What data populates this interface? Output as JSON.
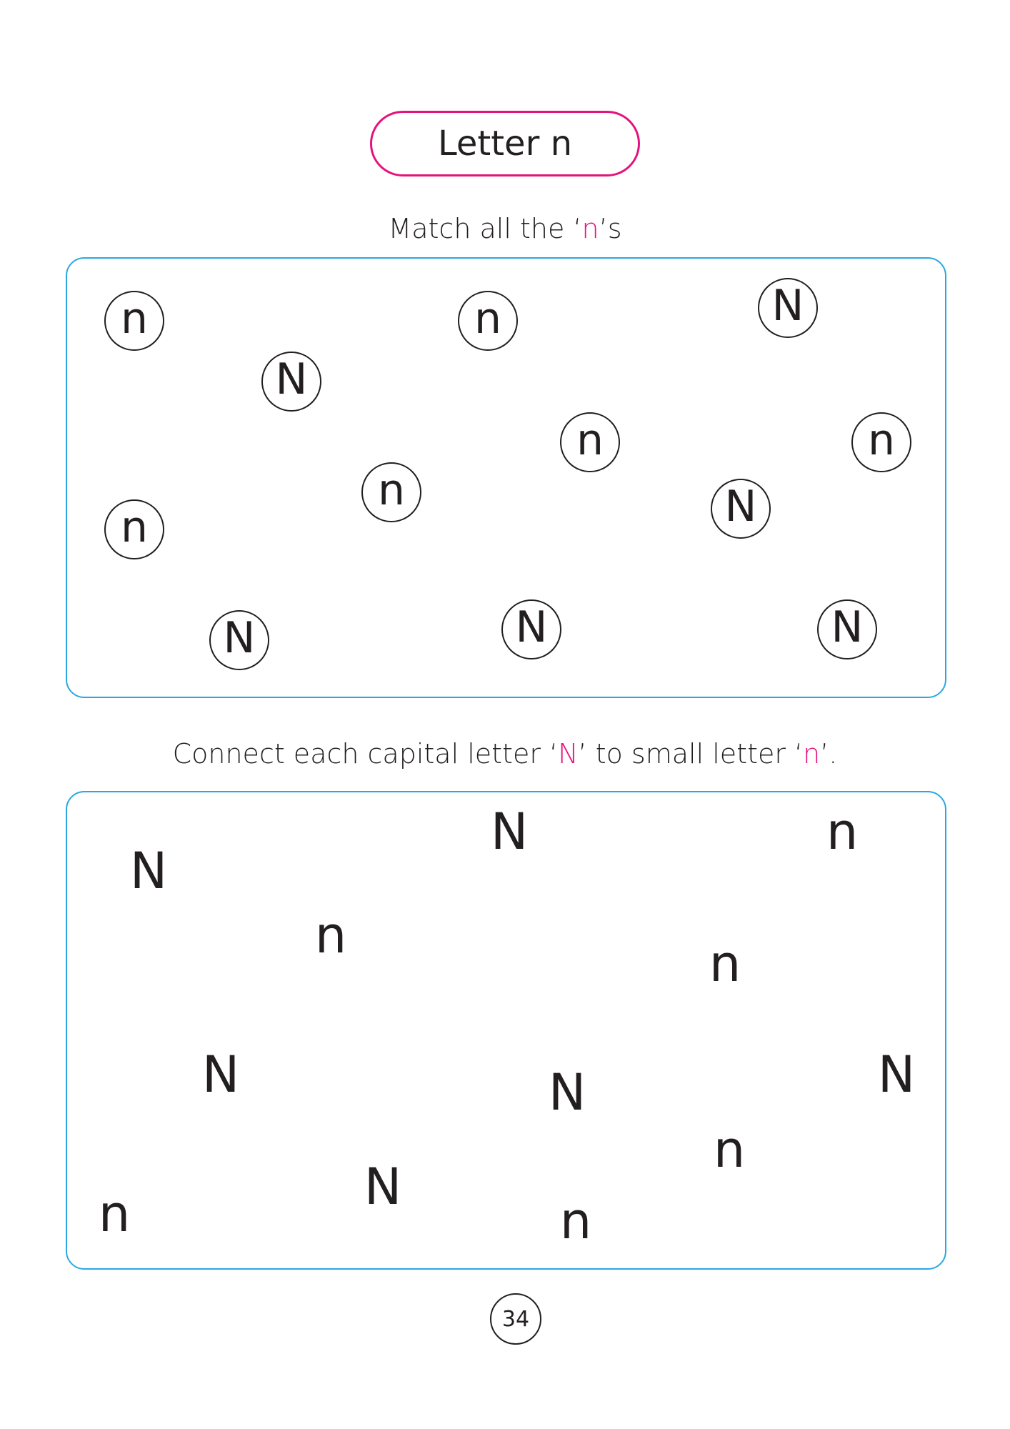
{
  "title": "Letter n",
  "activity_1": {
    "instruction_before": "Match all the ‘",
    "instruction_accent": "n",
    "instruction_after": "’s",
    "letters": [
      "n",
      "N",
      "n",
      "N",
      "n",
      "n",
      "n",
      "N",
      "n",
      "N",
      "N",
      "N"
    ]
  },
  "activity_2": {
    "instruction_before": "Connect each capital letter ‘",
    "instruction_accent_1": "N",
    "instruction_middle": "’ to small letter ‘",
    "instruction_accent_2": "n",
    "instruction_after": "’.",
    "letters": [
      "N",
      "n",
      "N",
      "n",
      "n",
      "N",
      "N",
      "N",
      "n",
      "N",
      "n",
      "n"
    ]
  },
  "page_number": "34",
  "colors": {
    "accent": "#e4127f",
    "panel_border": "#2aa8e0",
    "text": "#231f20"
  }
}
